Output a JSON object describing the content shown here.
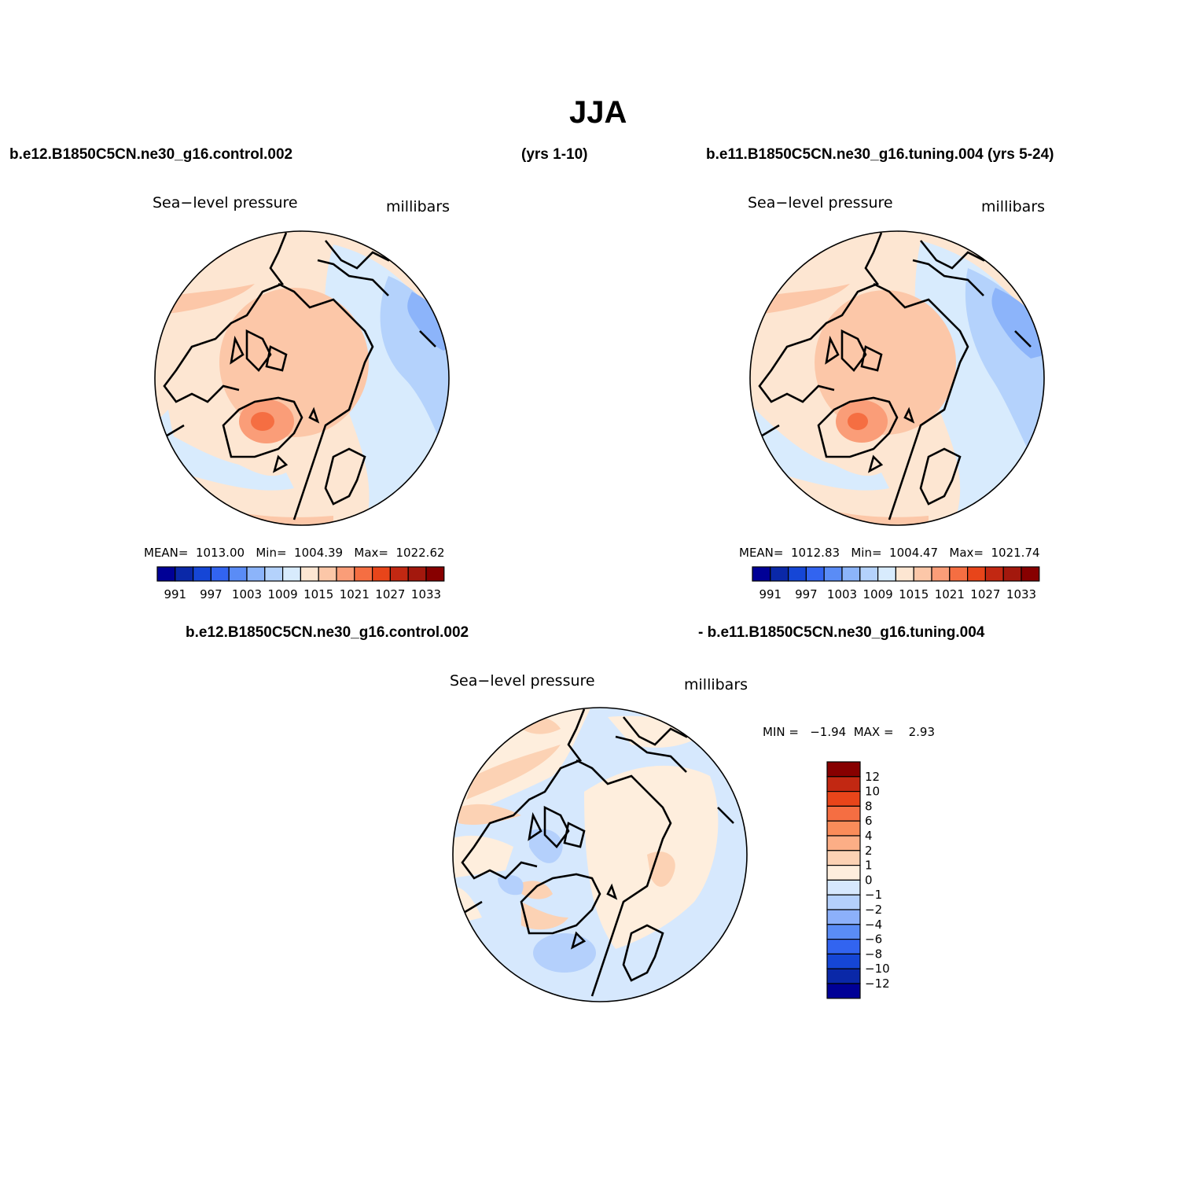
{
  "figure_title": "JJA",
  "headers": {
    "top_left": "b.e12.B1850C5CN.ne30_g16.control.002",
    "top_mid": "(yrs 1-10)",
    "top_right": "b.e11.B1850C5CN.ne30_g16.tuning.004 (yrs 5-24)",
    "bottom_left": "b.e12.B1850C5CN.ne30_g16.control.002",
    "bottom_right": "- b.e11.B1850C5CN.ne30_g16.tuning.004"
  },
  "panels": [
    {
      "variable": "Sea−level pressure",
      "units": "millibars",
      "stats": "MEAN=  1013.00   Min=  1004.39   Max=  1022.62",
      "mean": 1013.0,
      "min": 1004.39,
      "max": 1022.62
    },
    {
      "variable": "Sea−level pressure",
      "units": "millibars",
      "stats": "MEAN=  1012.83   Min=  1004.47   Max=  1021.74",
      "mean": 1012.83,
      "min": 1004.47,
      "max": 1021.74
    },
    {
      "variable": "Sea−level pressure",
      "units": "millibars",
      "stats": "MIN =   −1.94  MAX =    2.93",
      "min": -1.94,
      "max": 2.93
    }
  ],
  "colorbar_abs": {
    "colors": [
      "#000096",
      "#0a28a8",
      "#1546d6",
      "#3264f0",
      "#5a8cf6",
      "#8cb4fa",
      "#b4d2fc",
      "#d8ebfd",
      "#fde6d2",
      "#fcc7a8",
      "#fa9d78",
      "#f56e42",
      "#e8451a",
      "#c22812",
      "#a3180d",
      "#870000"
    ],
    "labels": [
      "991",
      "997",
      "1003",
      "1009",
      "1015",
      "1021",
      "1027",
      "1033"
    ]
  },
  "colorbar_diff": {
    "colors_top_to_bottom": [
      "#870000",
      "#c22812",
      "#e8451a",
      "#f56e42",
      "#fa8c5a",
      "#fcae86",
      "#fcd2b4",
      "#feeedd",
      "#d6e8fd",
      "#b4d0fc",
      "#8cb0fa",
      "#5a8cf6",
      "#3264f0",
      "#1546d6",
      "#0a28a8",
      "#000096"
    ],
    "labels_top_to_bottom": [
      "12",
      "10",
      "8",
      "6",
      "4",
      "2",
      "1",
      "0",
      "−1",
      "−2",
      "−4",
      "−6",
      "−8",
      "−10",
      "−12"
    ]
  },
  "chart_data": {
    "type": "heatmap",
    "title": "JJA",
    "maps": [
      {
        "projection": "polar-stereographic-north",
        "variable": "Sea-level pressure",
        "units": "millibars",
        "contour_levels": [
          991,
          994,
          997,
          1000,
          1003,
          1006,
          1009,
          1012,
          1015,
          1018,
          1021,
          1024,
          1027,
          1030,
          1033
        ],
        "mean": 1013.0,
        "min": 1004.39,
        "max": 1022.62
      },
      {
        "projection": "polar-stereographic-north",
        "variable": "Sea-level pressure",
        "units": "millibars",
        "contour_levels": [
          991,
          994,
          997,
          1000,
          1003,
          1006,
          1009,
          1012,
          1015,
          1018,
          1021,
          1024,
          1027,
          1030,
          1033
        ],
        "mean": 1012.83,
        "min": 1004.47,
        "max": 1021.74
      },
      {
        "projection": "polar-stereographic-north",
        "variable": "Sea-level pressure difference",
        "units": "millibars",
        "contour_levels": [
          -12,
          -10,
          -8,
          -6,
          -4,
          -2,
          -1,
          0,
          1,
          2,
          4,
          6,
          8,
          10,
          12
        ],
        "min": -1.94,
        "max": 2.93
      }
    ]
  }
}
